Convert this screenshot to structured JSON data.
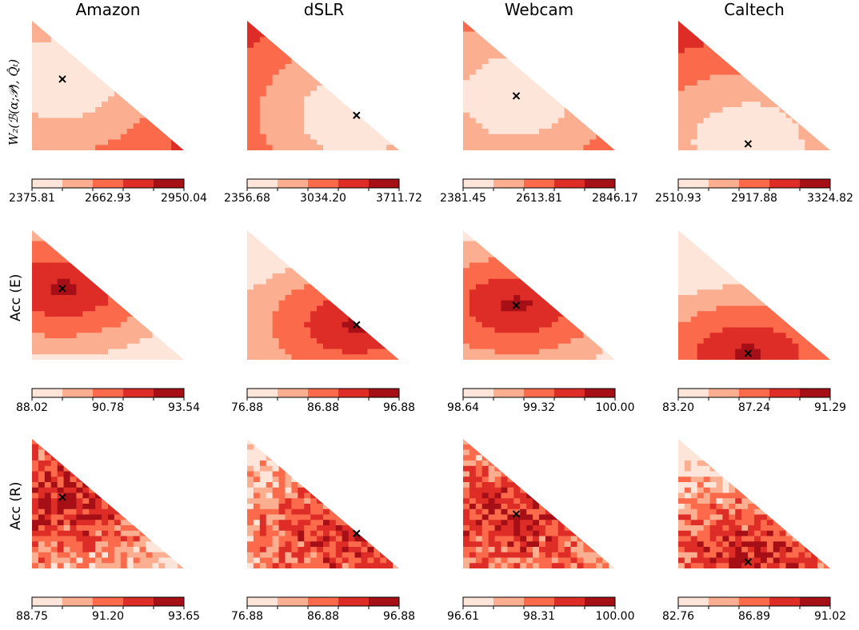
{
  "columns": [
    "Amazon",
    "dSLR",
    "Webcam",
    "Caltech"
  ],
  "rows": [
    "W₂(ℬ(α;𝒫), Q̂ₜ)",
    "Acc (E)",
    "Acc (R)"
  ],
  "palette": [
    "#fee5d9",
    "#fcae91",
    "#fb6a4a",
    "#de2d26",
    "#a50f15"
  ],
  "chart_data": [
    {
      "type": "heatmap",
      "title": "Amazon",
      "ylabel": "W₂(ℬ(α;𝒫), Q̂ₜ)",
      "colorbar_ticks": [
        "2375.81",
        "2662.93",
        "2950.04"
      ],
      "vmin": 2375.81,
      "vmax": 2950.04,
      "marker": [
        0.2,
        0.55
      ],
      "pattern": "bowl"
    },
    {
      "type": "heatmap",
      "title": "dSLR",
      "ylabel": "",
      "colorbar_ticks": [
        "2356.68",
        "3034.20",
        "3711.72"
      ],
      "vmin": 2356.68,
      "vmax": 3711.72,
      "marker": [
        0.72,
        0.27
      ],
      "pattern": "bowl"
    },
    {
      "type": "heatmap",
      "title": "Webcam",
      "ylabel": "",
      "colorbar_ticks": [
        "2381.45",
        "2613.81",
        "2846.17"
      ],
      "vmin": 2381.45,
      "vmax": 2846.17,
      "marker": [
        0.35,
        0.42
      ],
      "pattern": "bowl"
    },
    {
      "type": "heatmap",
      "title": "Caltech",
      "ylabel": "",
      "colorbar_ticks": [
        "2510.93",
        "2917.88",
        "3324.82"
      ],
      "vmin": 2510.93,
      "vmax": 3324.82,
      "marker": [
        0.46,
        0.05
      ],
      "pattern": "bowl"
    },
    {
      "type": "heatmap",
      "title": "",
      "ylabel": "Acc (E)",
      "colorbar_ticks": [
        "88.02",
        "90.78",
        "93.54"
      ],
      "vmin": 88.02,
      "vmax": 93.54,
      "marker": [
        0.2,
        0.55
      ],
      "pattern": "rise"
    },
    {
      "type": "heatmap",
      "title": "",
      "ylabel": "",
      "colorbar_ticks": [
        "76.88",
        "86.88",
        "96.88"
      ],
      "vmin": 76.88,
      "vmax": 96.88,
      "marker": [
        0.72,
        0.27
      ],
      "pattern": "rise"
    },
    {
      "type": "heatmap",
      "title": "",
      "ylabel": "",
      "colorbar_ticks": [
        "98.64",
        "99.32",
        "100.00"
      ],
      "vmin": 98.64,
      "vmax": 100.0,
      "marker": [
        0.35,
        0.42
      ],
      "pattern": "rise"
    },
    {
      "type": "heatmap",
      "title": "",
      "ylabel": "",
      "colorbar_ticks": [
        "83.20",
        "87.24",
        "91.29"
      ],
      "vmin": 83.2,
      "vmax": 91.29,
      "marker": [
        0.46,
        0.05
      ],
      "pattern": "rise"
    },
    {
      "type": "heatmap",
      "title": "",
      "ylabel": "Acc (R)",
      "colorbar_ticks": [
        "88.75",
        "91.20",
        "93.65"
      ],
      "vmin": 88.75,
      "vmax": 93.65,
      "marker": [
        0.2,
        0.55
      ],
      "pattern": "noisy"
    },
    {
      "type": "heatmap",
      "title": "",
      "ylabel": "",
      "colorbar_ticks": [
        "76.88",
        "86.88",
        "96.88"
      ],
      "vmin": 76.88,
      "vmax": 96.88,
      "marker": [
        0.72,
        0.27
      ],
      "pattern": "noisy"
    },
    {
      "type": "heatmap",
      "title": "",
      "ylabel": "",
      "colorbar_ticks": [
        "96.61",
        "98.31",
        "100.00"
      ],
      "vmin": 96.61,
      "vmax": 100.0,
      "marker": [
        0.35,
        0.42
      ],
      "pattern": "noisy"
    },
    {
      "type": "heatmap",
      "title": "",
      "ylabel": "",
      "colorbar_ticks": [
        "82.76",
        "86.89",
        "91.02"
      ],
      "vmin": 82.76,
      "vmax": 91.02,
      "marker": [
        0.46,
        0.05
      ],
      "pattern": "noisy"
    }
  ]
}
